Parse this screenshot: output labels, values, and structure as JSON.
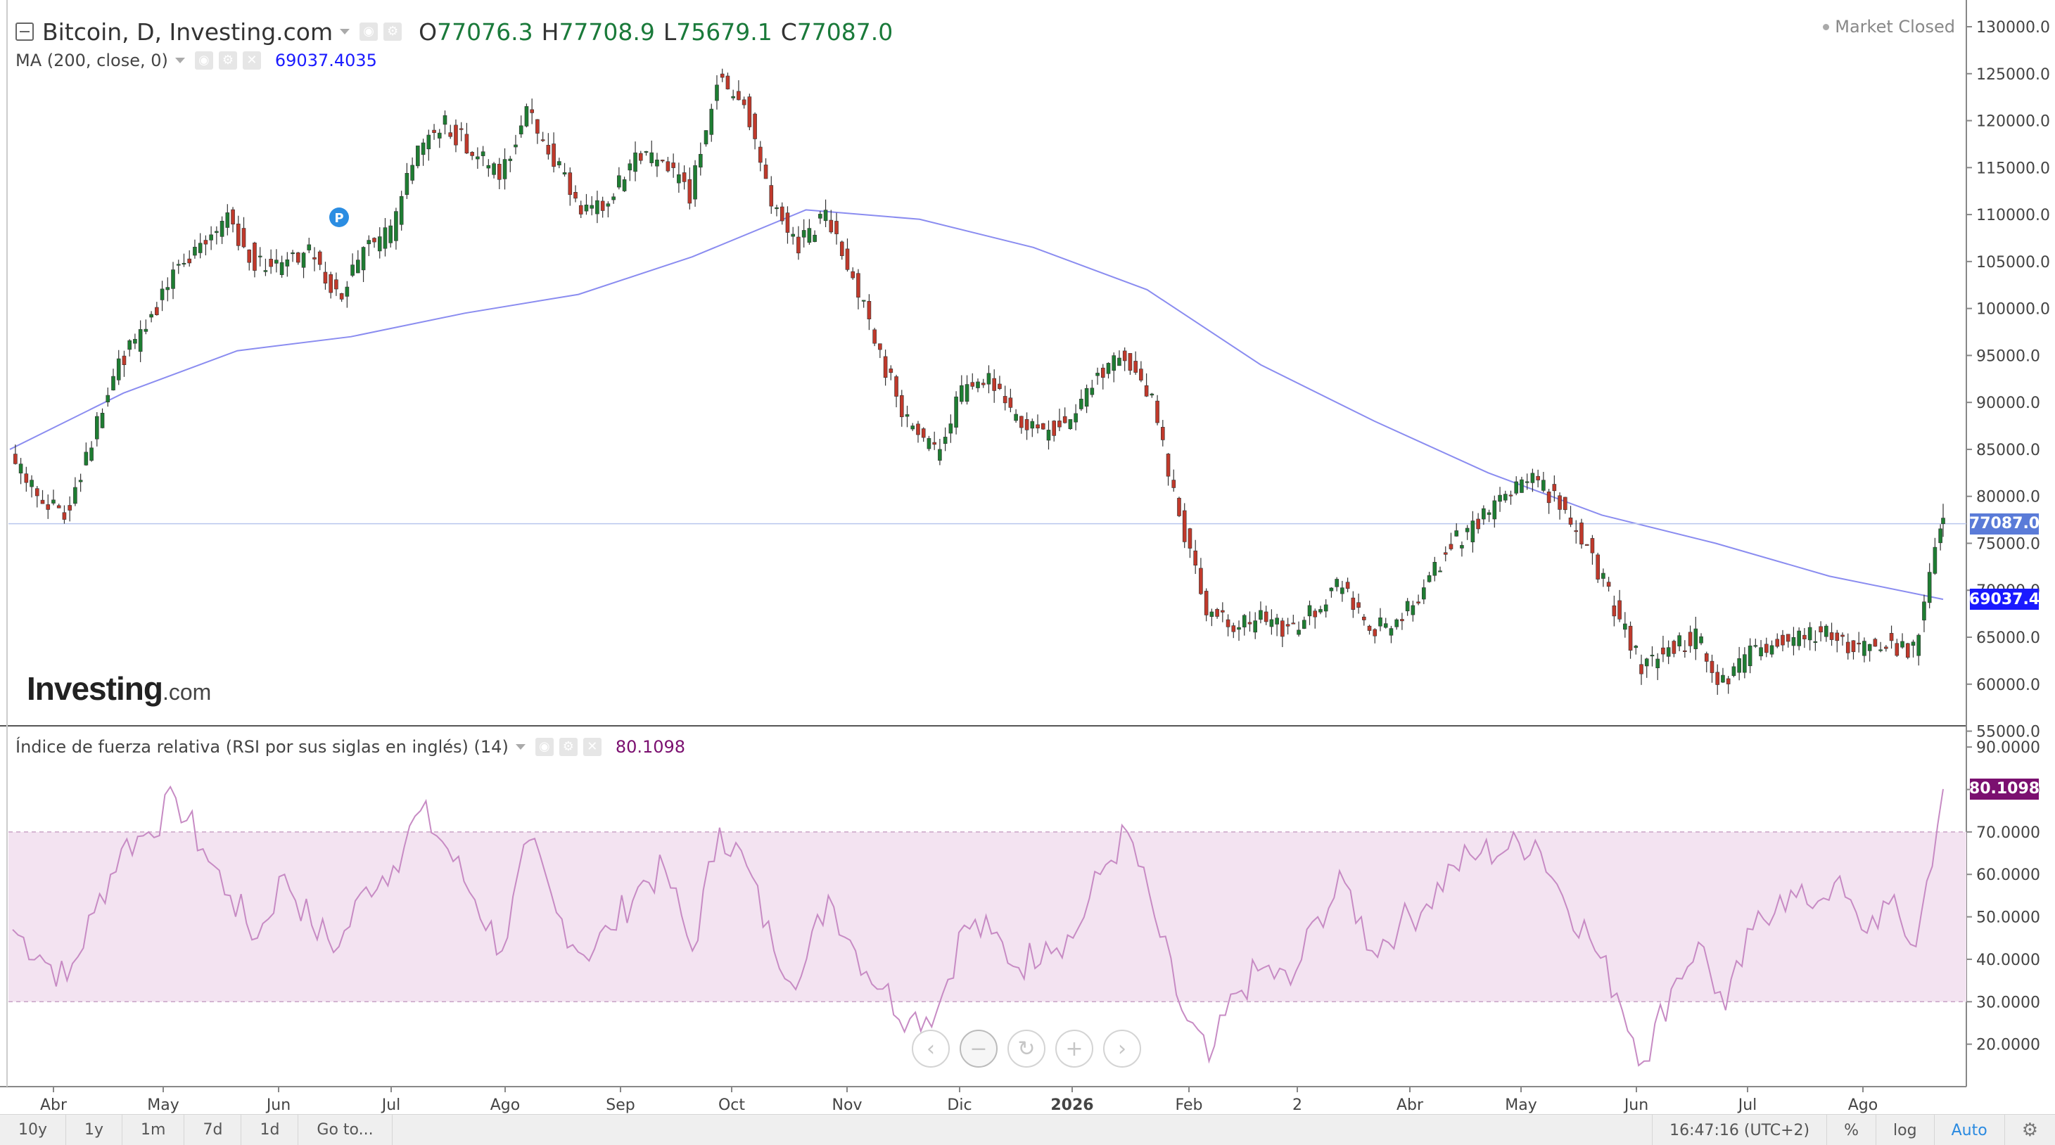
{
  "header": {
    "symbol_title": "Bitcoin, D, Investing.com",
    "ohlc": {
      "o_label": "O",
      "o": "77076.3",
      "h_label": "H",
      "h": "77708.9",
      "l_label": "L",
      "l": "75679.1",
      "c_label": "C",
      "c": "77087.0"
    },
    "market_status": "Market Closed"
  },
  "ma_legend": {
    "label": "MA (200, close, 0)",
    "value": "69037.4035"
  },
  "rsi_legend": {
    "label": "Índice de fuerza relativa (RSI por sus siglas en inglés) (14)",
    "value": "80.1098"
  },
  "logo": {
    "bold": "Investing",
    "tld": ".com"
  },
  "price_axis": {
    "ticks": [
      "130000.0",
      "125000.0",
      "120000.0",
      "115000.0",
      "110000.0",
      "105000.0",
      "100000.0",
      "95000.0",
      "90000.0",
      "85000.0",
      "80000.0",
      "75000.0",
      "70000.0",
      "65000.0",
      "60000.0",
      "55000.0"
    ],
    "last_price_tag": "77087.0",
    "ma_tag": "69037.4"
  },
  "rsi_axis": {
    "ticks": [
      "90.0000",
      "80.0000",
      "70.0000",
      "60.0000",
      "50.0000",
      "40.0000",
      "30.0000",
      "20.0000"
    ],
    "tag": "80.1098"
  },
  "time_axis": {
    "labels": [
      "Abr",
      "May",
      "Jun",
      "Jul",
      "Ago",
      "Sep",
      "Oct",
      "Nov",
      "Dic",
      "2026",
      "Feb",
      "2",
      "Abr",
      "May",
      "Jun",
      "Jul",
      "Ago"
    ],
    "bold_label": "2026"
  },
  "marker": {
    "text": "P"
  },
  "bottom_bar": {
    "ranges": [
      "10y",
      "1y",
      "1m",
      "7d",
      "1d",
      "Go to..."
    ],
    "time": "16:47:16 (UTC+2)",
    "percent": "%",
    "log": "log",
    "auto": "Auto"
  },
  "colors": {
    "up_candle": "#1e7d32",
    "down_candle": "#c0392b",
    "ma_line": "#8a8cf0",
    "rsi_line": "#c78bc4",
    "rsi_band": "#f3e3f1",
    "ma_tag_bg": "#1a1aff",
    "price_tag_bg": "#5a7bd8",
    "rsi_tag_bg": "#7b1070"
  },
  "chart_data": [
    {
      "type": "candlestick",
      "title": "Bitcoin, D, Investing.com",
      "ylim": [
        55000,
        130000
      ],
      "x_months": [
        "Abr",
        "May",
        "Jun",
        "Jul",
        "Ago",
        "Sep",
        "Oct",
        "Nov",
        "Dic",
        "2026",
        "Feb",
        "2",
        "Abr",
        "May",
        "Jun",
        "Jul",
        "Ago"
      ],
      "close_path": [
        [
          "Abr",
          84000
        ],
        [
          "Abr",
          80500
        ],
        [
          "Abr",
          78000
        ],
        [
          "Abr",
          86000
        ],
        [
          "May",
          94000
        ],
        [
          "May",
          98000
        ],
        [
          "May",
          104000
        ],
        [
          "May",
          107000
        ],
        [
          "Jun",
          109500
        ],
        [
          "Jun",
          105000
        ],
        [
          "Jun",
          104500
        ],
        [
          "Jun",
          106000
        ],
        [
          "Jun",
          101000
        ],
        [
          "Jul",
          106000
        ],
        [
          "Jul",
          108000
        ],
        [
          "Jul",
          117000
        ],
        [
          "Jul",
          119500
        ],
        [
          "Ago",
          117000
        ],
        [
          "Ago",
          114000
        ],
        [
          "Ago",
          121000
        ],
        [
          "Ago",
          116000
        ],
        [
          "Sep",
          110000
        ],
        [
          "Sep",
          111500
        ],
        [
          "Sep",
          115500
        ],
        [
          "Sep",
          116000
        ],
        [
          "Oct",
          112000
        ],
        [
          "Oct",
          124500
        ],
        [
          "Oct",
          122000
        ],
        [
          "Oct",
          111000
        ],
        [
          "Oct",
          107000
        ],
        [
          "Nov",
          110000
        ],
        [
          "Nov",
          103000
        ],
        [
          "Nov",
          95000
        ],
        [
          "Nov",
          88000
        ],
        [
          "Nov",
          84500
        ],
        [
          "Dic",
          91000
        ],
        [
          "Dic",
          92000
        ],
        [
          "Dic",
          88000
        ],
        [
          "Dic",
          87000
        ],
        [
          "2026",
          88000
        ],
        [
          "2026",
          93000
        ],
        [
          "2026",
          95000
        ],
        [
          "2026",
          90000
        ],
        [
          "Feb",
          78000
        ],
        [
          "Feb",
          68000
        ],
        [
          "Feb",
          66000
        ],
        [
          "Feb",
          67000
        ],
        [
          "Feb",
          65500
        ],
        [
          "2",
          68000
        ],
        [
          "2",
          71000
        ],
        [
          "2",
          66000
        ],
        [
          "2",
          66500
        ],
        [
          "Abr",
          70000
        ],
        [
          "Abr",
          75000
        ],
        [
          "Abr",
          77000
        ],
        [
          "May",
          80000
        ],
        [
          "May",
          82000
        ],
        [
          "May",
          79000
        ],
        [
          "May",
          75000
        ],
        [
          "Jun",
          68000
        ],
        [
          "Jun",
          62000
        ],
        [
          "Jun",
          64000
        ],
        [
          "Jun",
          65000
        ],
        [
          "Jul",
          60000
        ],
        [
          "Jul",
          63000
        ],
        [
          "Jul",
          64500
        ],
        [
          "Jul",
          65500
        ],
        [
          "Ago",
          65000
        ],
        [
          "Ago",
          64000
        ],
        [
          "Ago",
          64500
        ],
        [
          "Ago",
          63500
        ],
        [
          "Ago",
          77087
        ]
      ],
      "last": {
        "open": 77076.3,
        "high": 77708.9,
        "low": 75679.1,
        "close": 77087.0
      },
      "series": [
        {
          "name": "MA (200, close, 0)",
          "points": [
            [
              "Abr",
              85000
            ],
            [
              "May",
              91000
            ],
            [
              "Jun",
              95500
            ],
            [
              "Jul",
              97000
            ],
            [
              "Ago",
              99500
            ],
            [
              "Sep",
              101500
            ],
            [
              "Oct",
              105500
            ],
            [
              "Nov",
              110500
            ],
            [
              "Dic",
              109500
            ],
            [
              "2026",
              106500
            ],
            [
              "Feb",
              102000
            ],
            [
              "2",
              94000
            ],
            [
              "Abr",
              88000
            ],
            [
              "May",
              82500
            ],
            [
              "Jun",
              78000
            ],
            [
              "Jul",
              75000
            ],
            [
              "Ago",
              71500
            ],
            [
              "Ago",
              69037.4
            ]
          ]
        }
      ]
    },
    {
      "type": "line",
      "title": "Índice de fuerza relativa (RSI por sus siglas en inglés) (14)",
      "ylim": [
        10,
        95
      ],
      "band": [
        30,
        70
      ],
      "x_months": [
        "Abr",
        "May",
        "Jun",
        "Jul",
        "Ago",
        "Sep",
        "Oct",
        "Nov",
        "Dic",
        "2026",
        "Feb",
        "2",
        "Abr",
        "May",
        "Jun",
        "Jul",
        "Ago"
      ],
      "series": [
        {
          "name": "RSI (14)",
          "points": [
            [
              "Abr",
              47
            ],
            [
              "Abr",
              41
            ],
            [
              "Abr",
              35
            ],
            [
              "Abr",
              51
            ],
            [
              "May",
              66
            ],
            [
              "May",
              70
            ],
            [
              "May",
              78
            ],
            [
              "May",
              66
            ],
            [
              "Jun",
              55
            ],
            [
              "Jun",
              45
            ],
            [
              "Jun",
              60
            ],
            [
              "Jun",
              48
            ],
            [
              "Jun",
              43
            ],
            [
              "Jul",
              57
            ],
            [
              "Jul",
              62
            ],
            [
              "Jul",
              75
            ],
            [
              "Jul",
              66
            ],
            [
              "Ago",
              54
            ],
            [
              "Ago",
              42
            ],
            [
              "Ago",
              68
            ],
            [
              "Ago",
              51
            ],
            [
              "Sep",
              41
            ],
            [
              "Sep",
              47
            ],
            [
              "Sep",
              57
            ],
            [
              "Sep",
              61
            ],
            [
              "Oct",
              42
            ],
            [
              "Oct",
              71
            ],
            [
              "Oct",
              62
            ],
            [
              "Oct",
              42
            ],
            [
              "Oct",
              36
            ],
            [
              "Nov",
              55
            ],
            [
              "Nov",
              42
            ],
            [
              "Nov",
              33
            ],
            [
              "Nov",
              26
            ],
            [
              "Nov",
              28
            ],
            [
              "Dic",
              48
            ],
            [
              "Dic",
              46
            ],
            [
              "Dic",
              38
            ],
            [
              "Dic",
              44
            ],
            [
              "2026",
              45
            ],
            [
              "2026",
              60
            ],
            [
              "2026",
              70
            ],
            [
              "2026",
              50
            ],
            [
              "Feb",
              28
            ],
            [
              "Feb",
              16
            ],
            [
              "Feb",
              32
            ],
            [
              "Feb",
              38
            ],
            [
              "Feb",
              34
            ],
            [
              "2",
              50
            ],
            [
              "2",
              58
            ],
            [
              "2",
              42
            ],
            [
              "2",
              48
            ],
            [
              "Abr",
              53
            ],
            [
              "Abr",
              62
            ],
            [
              "Abr",
              65
            ],
            [
              "May",
              66
            ],
            [
              "May",
              68
            ],
            [
              "May",
              55
            ],
            [
              "May",
              45
            ],
            [
              "Jun",
              32
            ],
            [
              "Jun",
              16
            ],
            [
              "Jun",
              33
            ],
            [
              "Jun",
              44
            ],
            [
              "Jul",
              28
            ],
            [
              "Jul",
              47
            ],
            [
              "Jul",
              55
            ],
            [
              "Jul",
              53
            ],
            [
              "Ago",
              58
            ],
            [
              "Ago",
              47
            ],
            [
              "Ago",
              53
            ],
            [
              "Ago",
              43
            ],
            [
              "Ago",
              80.1098
            ]
          ]
        }
      ]
    }
  ]
}
